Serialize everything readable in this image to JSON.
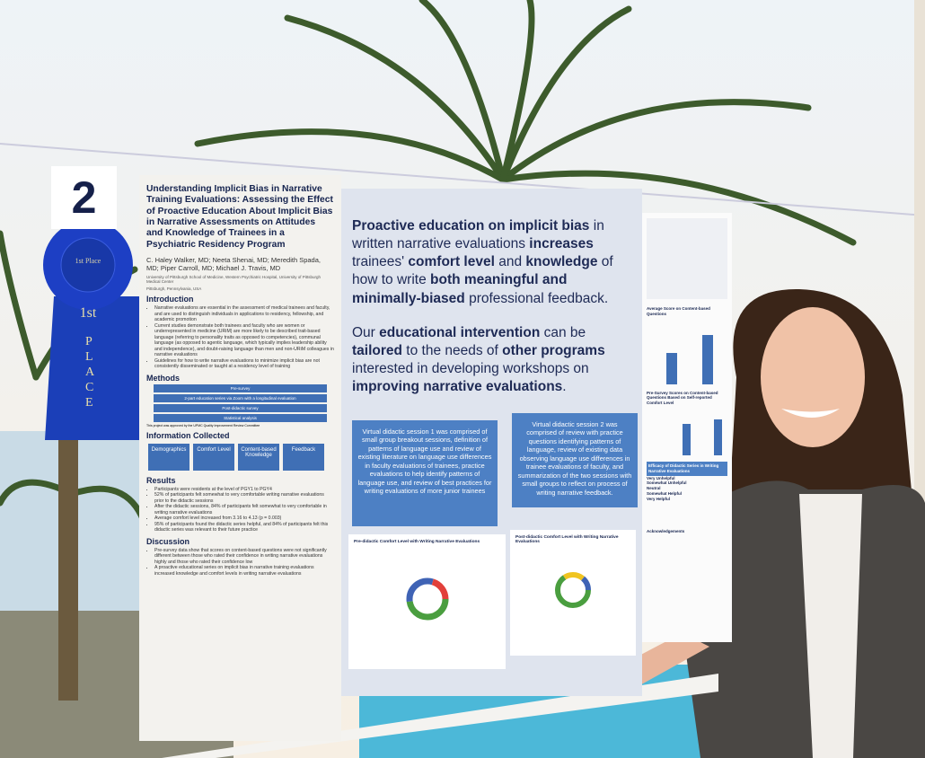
{
  "placard": "2",
  "ribbon": {
    "top": "1st Place",
    "big": "1st",
    "word": "PLACE"
  },
  "poster": {
    "title": "Understanding Implicit Bias in Narrative Training Evaluations: Assessing the Effect of Proactive Education About Implicit Bias in Narrative Assessments on Attitudes and Knowledge of Trainees in a Psychiatric Residency Program",
    "authors": "C. Haley Walker, MD; Neeta Shenai, MD; Meredith Spada, MD; Piper Carroll, MD; Michael J. Travis, MD",
    "affiliation": "University of Pittsburgh School of Medicine, Western Psychiatric Hospital, University of Pittsburgh Medical Center",
    "location": "Pittsburgh, Pennsylvania, USA",
    "introduction": {
      "heading": "Introduction",
      "bullets": [
        "Narrative evaluations are essential in the assessment of medical trainees and faculty, and are used to distinguish individuals in applications to residency, fellowship, and academic promotion",
        "Current studies demonstrate both trainees and faculty who are women or underrepresented in medicine (URiM) are more likely to be described trait-based language (referring to personality traits as opposed to competencies), communal language (as opposed to agentic language, which typically implies leadership ability and independence), and doubt-raising language than men and non-URiM colleagues in narrative evaluations",
        "Guidelines for how to write narrative evaluations to minimize implicit bias are not consistently disseminated or taught at a residency level of training"
      ]
    },
    "methods": {
      "heading": "Methods",
      "steps": [
        "Pre-survey",
        "2-part education series via Zoom with a longitudinal evaluation",
        "Post-didactic survey",
        "Statistical analysis"
      ],
      "note": "This project was approved by the UPMC Quality Improvement Review Committee"
    },
    "information": {
      "heading": "Information Collected",
      "items": [
        "Demographics",
        "Comfort Level",
        "Content-based Knowledge",
        "Feedback"
      ]
    },
    "results": {
      "heading": "Results",
      "bullets": [
        "Participants were residents at the level of PGY1 to PGY4",
        "52% of participants felt somewhat to very comfortable writing narrative evaluations prior to the didactic sessions",
        "After the didactic sessions, 84% of participants felt somewhat to very comfortable in writing narrative evaluations",
        "Average comfort level increased from 3.16 to 4.13 (p = 0.003)",
        "95% of participants found the didactic series helpful, and 84% of participants felt this didactic series was relevant to their future practice"
      ]
    },
    "discussion": {
      "heading": "Discussion",
      "bullets": [
        "Pre-survey data show that scores on content-based questions were not significantly different between those who rated their confidence in writing narrative evaluations highly and those who rated their confidence low",
        "A proactive educational series on implicit bias in narrative training evaluations increased knowledge and comfort levels in writing narrative evaluations"
      ]
    },
    "message": [
      [
        {
          "text": "Proactive education on implicit bias",
          "bold": true
        },
        {
          "text": " in written narrative evaluations ",
          "bold": false
        },
        {
          "text": "increases",
          "bold": true
        },
        {
          "text": " trainees' ",
          "bold": false
        },
        {
          "text": "comfort level",
          "bold": true
        },
        {
          "text": " and ",
          "bold": false
        },
        {
          "text": "knowledge",
          "bold": true
        },
        {
          "text": " of how to write ",
          "bold": false
        },
        {
          "text": "both meaningful and minimally-biased",
          "bold": true
        },
        {
          "text": " professional feedback.",
          "bold": false
        }
      ],
      [
        {
          "text": "Our ",
          "bold": false
        },
        {
          "text": "educational intervention",
          "bold": true
        },
        {
          "text": " can be ",
          "bold": false
        },
        {
          "text": "tailored",
          "bold": true
        },
        {
          "text": " to the needs of ",
          "bold": false
        },
        {
          "text": "other programs",
          "bold": true
        },
        {
          "text": " interested in developing workshops on ",
          "bold": false
        },
        {
          "text": "improving narrative evaluations",
          "bold": true
        },
        {
          "text": ".",
          "bold": false
        }
      ]
    ],
    "sessions": [
      "Virtual didactic session 1 was comprised of small group breakout sessions, definition of patterns of language use and review of existing literature on language use differences in faculty evaluations of trainees, practice evaluations to help identify patterns of language use, and review of best practices for writing evaluations of more junior trainees",
      "Virtual didactic session 2 was comprised of review with practice questions identifying patterns of language, review of existing data observing language use differences in trainee evaluations of faculty, and summarization of the two sessions with small groups to reflect on process of writing narrative feedback."
    ],
    "chart_titles": [
      "Pre-didactic Comfort Level with Writing Narrative Evaluations",
      "Post-didactic Comfort Level with Writing Narrative Evaluations"
    ],
    "side": {
      "headings": [
        "Average Score on Content-based Questions",
        "Pre-Survey Scores on Content-based Questions Based on Self-reported Comfort Level",
        "Efficacy of Didactic Series in Writing Narrative Evaluations"
      ],
      "scale": [
        "Very Unhelpful",
        "Somewhat Unhelpful",
        "Neutral",
        "Somewhat Helpful",
        "Very Helpful"
      ],
      "ack": "Acknowledgements"
    }
  }
}
